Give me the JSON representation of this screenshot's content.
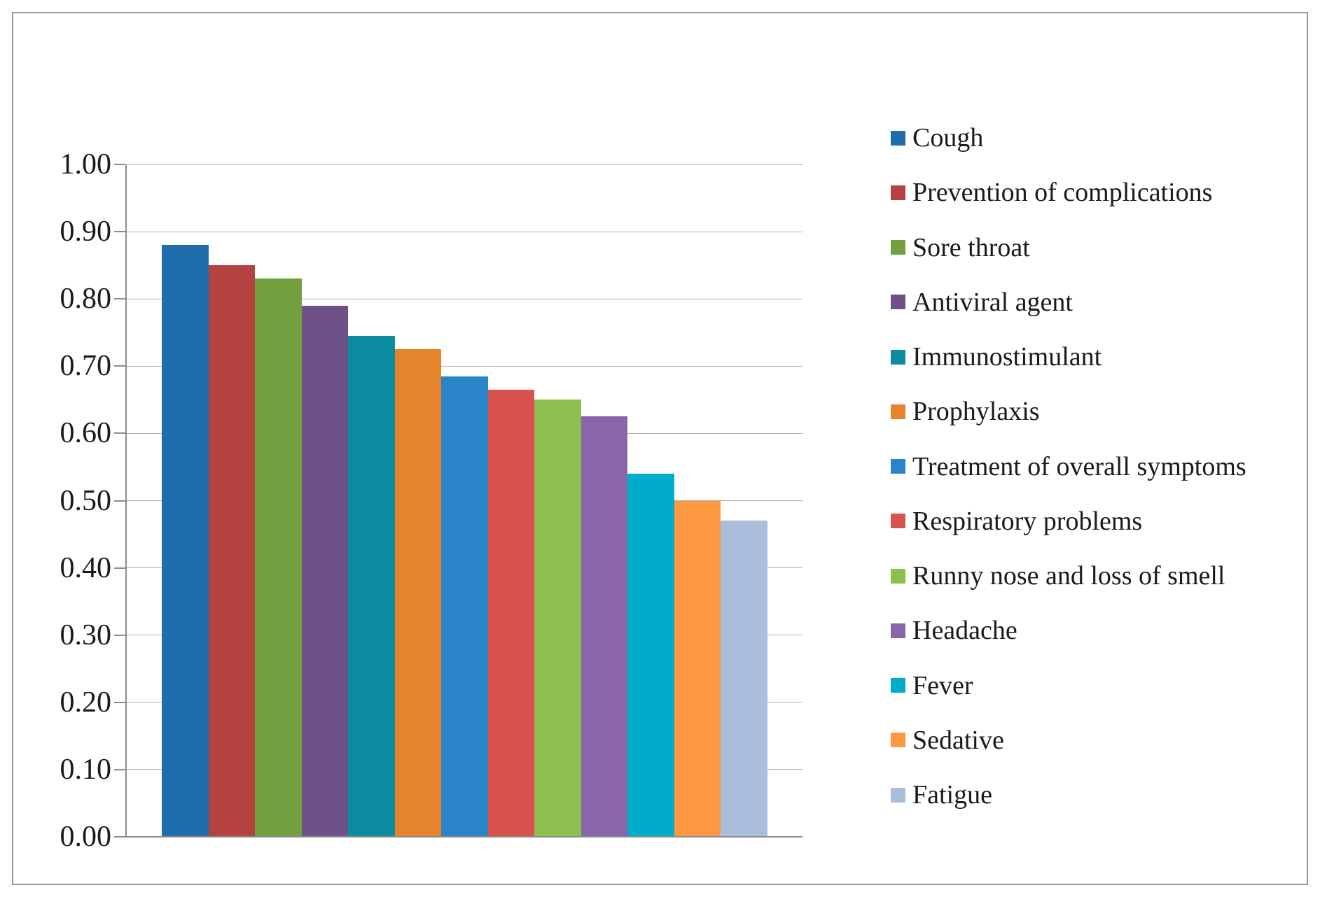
{
  "chart_data": {
    "type": "bar",
    "categories": [
      "Cough",
      "Prevention of complications",
      "Sore throat",
      "Antiviral agent",
      "Immunostimulant",
      "Prophylaxis",
      "Treatment of overall symptoms",
      "Respiratory problems",
      "Runny nose and loss of smell",
      "Headache",
      "Fever",
      "Sedative",
      "Fatigue"
    ],
    "values": [
      0.88,
      0.85,
      0.83,
      0.79,
      0.745,
      0.725,
      0.685,
      0.665,
      0.65,
      0.625,
      0.54,
      0.5,
      0.47
    ],
    "colors": [
      "#1f6dad",
      "#b44340",
      "#73a03f",
      "#6d5188",
      "#0b8ca0",
      "#e6842d",
      "#2a85c8",
      "#da524e",
      "#8cbe50",
      "#8966aa",
      "#00acc9",
      "#fb9840",
      "#a8bedc"
    ],
    "ylim": [
      0.0,
      1.0
    ],
    "ytick_step": 0.1,
    "ytick_labels": [
      "0.00",
      "0.10",
      "0.20",
      "0.30",
      "0.40",
      "0.50",
      "0.60",
      "0.70",
      "0.80",
      "0.90",
      "1.00"
    ],
    "grid": true,
    "legend_position": "right"
  },
  "style": {
    "background": "#ffffff",
    "border_color": "#9b9b9b",
    "grid_color": "#aeaeae",
    "axis_color": "#8c8c8c",
    "text_color": "#1b1b1b"
  }
}
